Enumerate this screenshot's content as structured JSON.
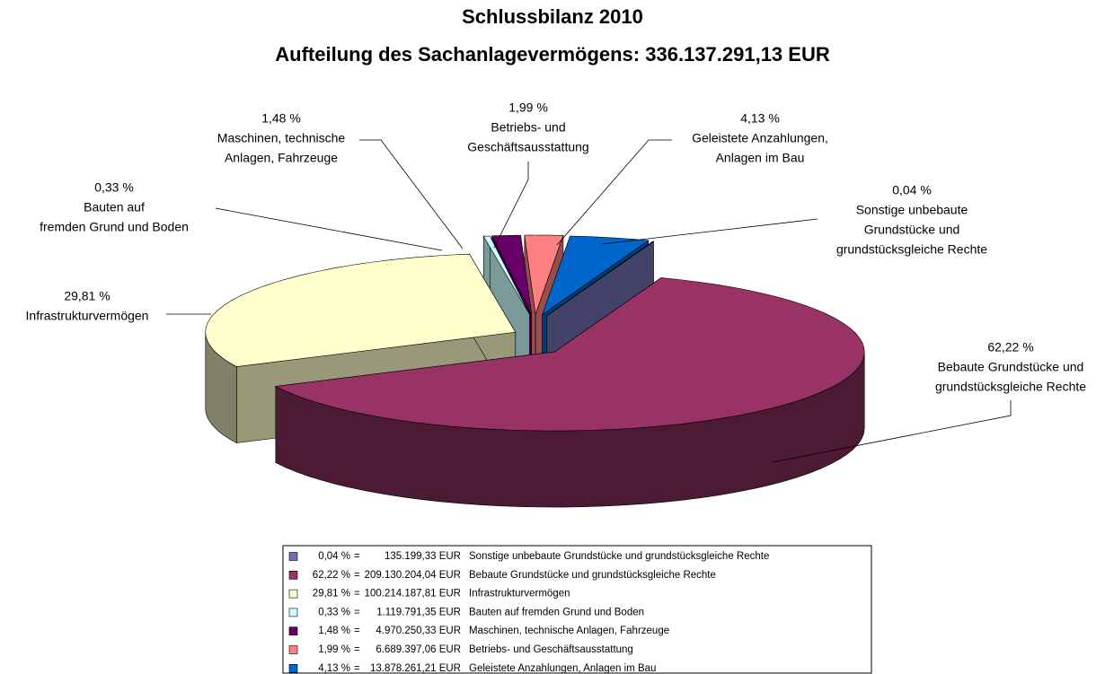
{
  "chart_data": {
    "type": "pie3d",
    "title": "Schlussbilanz 2010",
    "subtitle": "Aufteilung des Sachanlagevermögens: 336.137.291,13 EUR",
    "categories": [
      "Sonstige unbebaute Grundstücke und grundstücksgleiche Rechte",
      "Bebaute Grundstücke und grundstücksgleiche Rechte",
      "Infrastrukturvermögen",
      "Bauten auf fremden Grund und Boden",
      "Maschinen, technische Anlagen, Fahrzeuge",
      "Betriebs- und Geschäftsausstattung",
      "Geleistete Anzahlungen, Anlagen im Bau"
    ],
    "label_lines": [
      [
        "Sonstige unbebaute",
        "Grundstücke und",
        "grundstücksgleiche Rechte"
      ],
      [
        "Bebaute Grundstücke und",
        "grundstücksgleiche Rechte"
      ],
      [
        "Infrastrukturvermögen"
      ],
      [
        "Bauten auf",
        "fremden Grund und Boden"
      ],
      [
        "Maschinen, technische",
        "Anlagen, Fahrzeuge"
      ],
      [
        "Betriebs- und",
        "Geschäftsausstattung"
      ],
      [
        "Geleistete Anzahlungen,",
        "Anlagen im Bau"
      ]
    ],
    "values": [
      0.04,
      62.22,
      29.81,
      0.33,
      1.48,
      1.99,
      4.13
    ],
    "value_labels": [
      "0,04 %",
      "62,22 %",
      "29,81 %",
      "0,33 %",
      "1,48 %",
      "1,99 %",
      "4,13 %"
    ],
    "amounts": [
      135199.33,
      209130204.04,
      100214187.81,
      1119791.35,
      4970250.33,
      6689397.06,
      13878261.21
    ],
    "amount_labels": [
      "135.199,33 EUR",
      "209.130.204,04 EUR",
      "100.214.187,81 EUR",
      "1.119.791,35 EUR",
      "4.970.250,33 EUR",
      "6.689.397,06 EUR",
      "13.878.261,21 EUR"
    ],
    "legend_separator": "=",
    "colors": [
      "#7070b0",
      "#993366",
      "#ffffcc",
      "#ccffff",
      "#660066",
      "#ff8080",
      "#0066cc"
    ]
  }
}
